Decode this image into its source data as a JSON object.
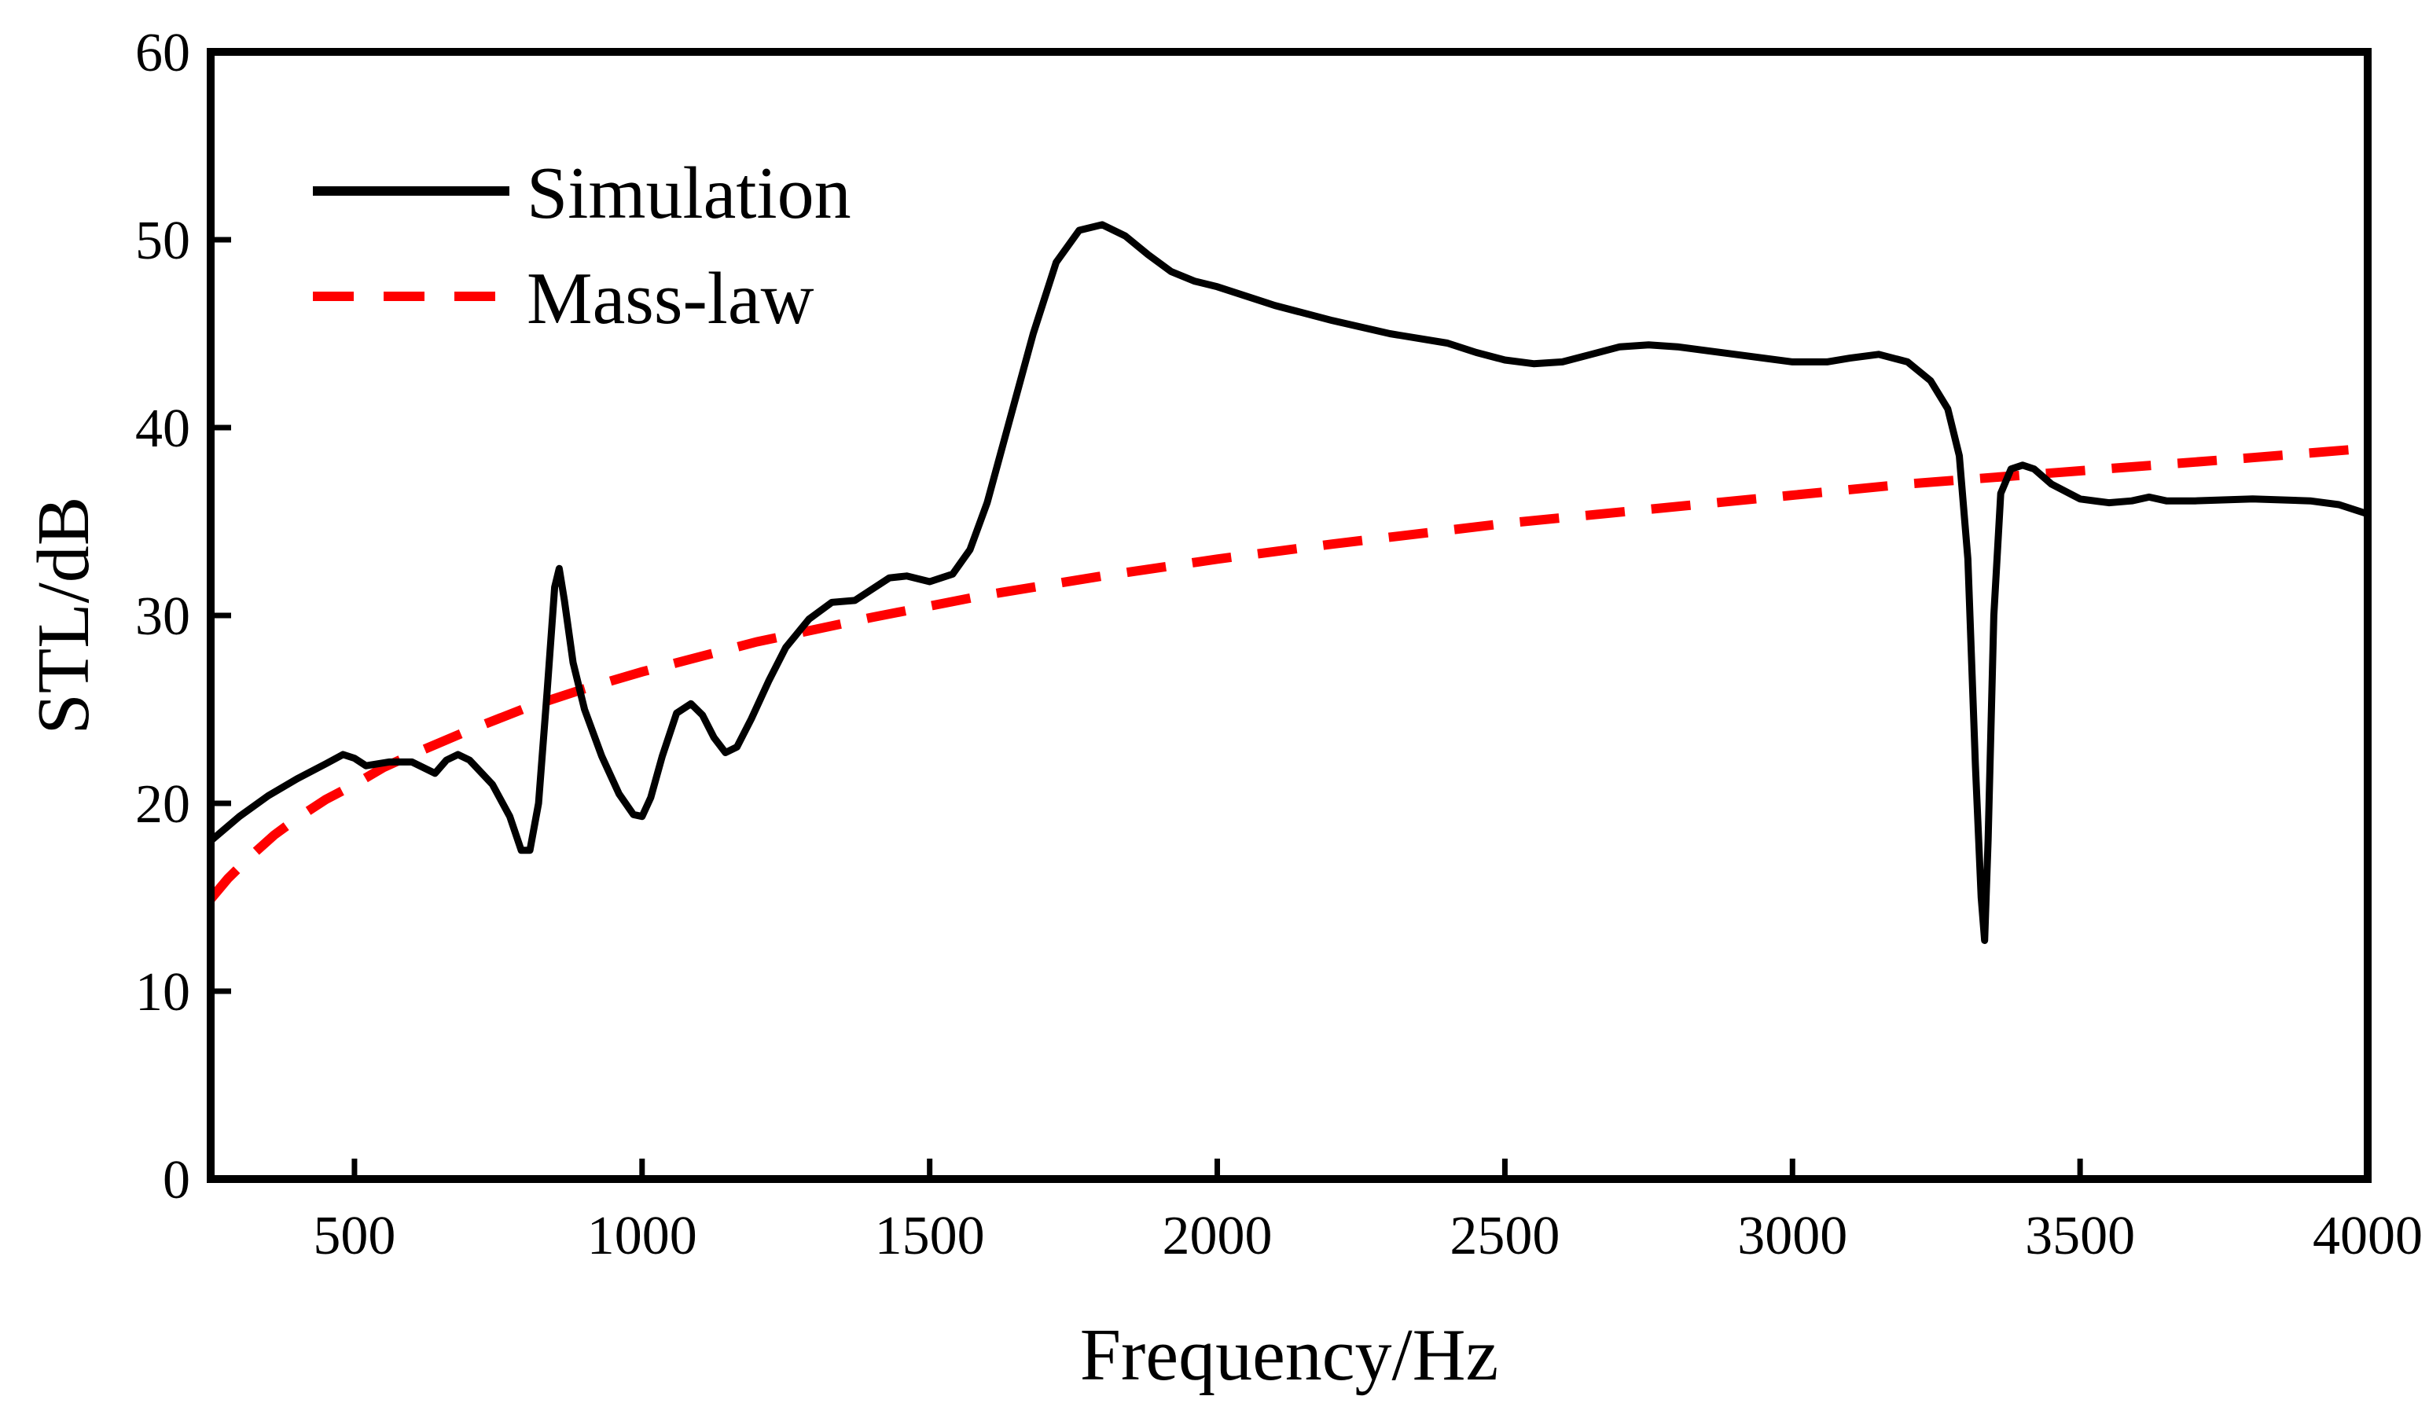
{
  "chart_data": {
    "type": "line",
    "title": "",
    "xlabel": "Frequency/Hz",
    "ylabel": "STL/dB",
    "xlim": [
      250,
      4000
    ],
    "ylim": [
      0,
      60
    ],
    "xticks": [
      500,
      1000,
      1500,
      2000,
      2500,
      3000,
      3500,
      4000
    ],
    "yticks": [
      0,
      10,
      20,
      30,
      40,
      50,
      60
    ],
    "grid": false,
    "legend_position": "top-left",
    "series": [
      {
        "name": "Simulation",
        "color": "#000000",
        "style": "solid",
        "points": [
          [
            250,
            18.0
          ],
          [
            300,
            19.3
          ],
          [
            350,
            20.4
          ],
          [
            400,
            21.3
          ],
          [
            450,
            22.1
          ],
          [
            480,
            22.6
          ],
          [
            500,
            22.4
          ],
          [
            520,
            22.0
          ],
          [
            560,
            22.2
          ],
          [
            600,
            22.2
          ],
          [
            640,
            21.6
          ],
          [
            660,
            22.3
          ],
          [
            680,
            22.6
          ],
          [
            700,
            22.3
          ],
          [
            740,
            21.0
          ],
          [
            770,
            19.3
          ],
          [
            790,
            17.5
          ],
          [
            805,
            17.5
          ],
          [
            820,
            20.0
          ],
          [
            835,
            26.0
          ],
          [
            848,
            31.5
          ],
          [
            856,
            32.5
          ],
          [
            865,
            30.8
          ],
          [
            880,
            27.5
          ],
          [
            900,
            25.0
          ],
          [
            930,
            22.5
          ],
          [
            960,
            20.5
          ],
          [
            985,
            19.4
          ],
          [
            1000,
            19.3
          ],
          [
            1015,
            20.3
          ],
          [
            1035,
            22.5
          ],
          [
            1060,
            24.8
          ],
          [
            1085,
            25.3
          ],
          [
            1105,
            24.7
          ],
          [
            1125,
            23.5
          ],
          [
            1145,
            22.7
          ],
          [
            1165,
            23.0
          ],
          [
            1190,
            24.5
          ],
          [
            1220,
            26.5
          ],
          [
            1250,
            28.3
          ],
          [
            1290,
            29.8
          ],
          [
            1330,
            30.7
          ],
          [
            1370,
            30.8
          ],
          [
            1400,
            31.4
          ],
          [
            1430,
            32.0
          ],
          [
            1460,
            32.1
          ],
          [
            1500,
            31.8
          ],
          [
            1540,
            32.2
          ],
          [
            1570,
            33.5
          ],
          [
            1600,
            36.0
          ],
          [
            1640,
            40.5
          ],
          [
            1680,
            45.0
          ],
          [
            1720,
            48.8
          ],
          [
            1760,
            50.5
          ],
          [
            1800,
            50.8
          ],
          [
            1840,
            50.2
          ],
          [
            1880,
            49.2
          ],
          [
            1920,
            48.3
          ],
          [
            1960,
            47.8
          ],
          [
            2000,
            47.5
          ],
          [
            2100,
            46.5
          ],
          [
            2200,
            45.7
          ],
          [
            2300,
            45.0
          ],
          [
            2400,
            44.5
          ],
          [
            2450,
            44.0
          ],
          [
            2500,
            43.6
          ],
          [
            2550,
            43.4
          ],
          [
            2600,
            43.5
          ],
          [
            2650,
            43.9
          ],
          [
            2700,
            44.3
          ],
          [
            2750,
            44.4
          ],
          [
            2800,
            44.3
          ],
          [
            2900,
            43.9
          ],
          [
            3000,
            43.5
          ],
          [
            3060,
            43.5
          ],
          [
            3100,
            43.7
          ],
          [
            3150,
            43.9
          ],
          [
            3200,
            43.5
          ],
          [
            3240,
            42.5
          ],
          [
            3270,
            41.0
          ],
          [
            3290,
            38.5
          ],
          [
            3305,
            33.0
          ],
          [
            3318,
            22.0
          ],
          [
            3328,
            15.0
          ],
          [
            3334,
            12.7
          ],
          [
            3340,
            18.0
          ],
          [
            3350,
            30.0
          ],
          [
            3362,
            36.5
          ],
          [
            3380,
            37.8
          ],
          [
            3400,
            38.0
          ],
          [
            3420,
            37.8
          ],
          [
            3450,
            37.0
          ],
          [
            3500,
            36.2
          ],
          [
            3550,
            36.0
          ],
          [
            3590,
            36.1
          ],
          [
            3620,
            36.3
          ],
          [
            3650,
            36.1
          ],
          [
            3700,
            36.1
          ],
          [
            3800,
            36.2
          ],
          [
            3900,
            36.1
          ],
          [
            3950,
            35.9
          ],
          [
            4000,
            35.4
          ]
        ]
      },
      {
        "name": "Mass-law",
        "color": "#ff0000",
        "style": "dashed",
        "points": [
          [
            250,
            14.9
          ],
          [
            280,
            16.0
          ],
          [
            320,
            17.2
          ],
          [
            360,
            18.3
          ],
          [
            400,
            19.2
          ],
          [
            450,
            20.2
          ],
          [
            500,
            21.0
          ],
          [
            550,
            21.9
          ],
          [
            600,
            22.6
          ],
          [
            700,
            23.9
          ],
          [
            800,
            25.1
          ],
          [
            900,
            26.1
          ],
          [
            1000,
            27.0
          ],
          [
            1200,
            28.6
          ],
          [
            1400,
            29.9
          ],
          [
            1600,
            31.1
          ],
          [
            1800,
            32.1
          ],
          [
            2000,
            33.0
          ],
          [
            2200,
            33.8
          ],
          [
            2500,
            34.9
          ],
          [
            2800,
            35.8
          ],
          [
            3000,
            36.4
          ],
          [
            3200,
            37.0
          ],
          [
            3500,
            37.7
          ],
          [
            3800,
            38.4
          ],
          [
            4000,
            38.9
          ]
        ]
      }
    ]
  },
  "legend": {
    "items": [
      {
        "label": "Simulation",
        "color": "#000000",
        "style": "solid"
      },
      {
        "label": "Mass-law",
        "color": "#ff0000",
        "style": "dashed"
      }
    ]
  }
}
